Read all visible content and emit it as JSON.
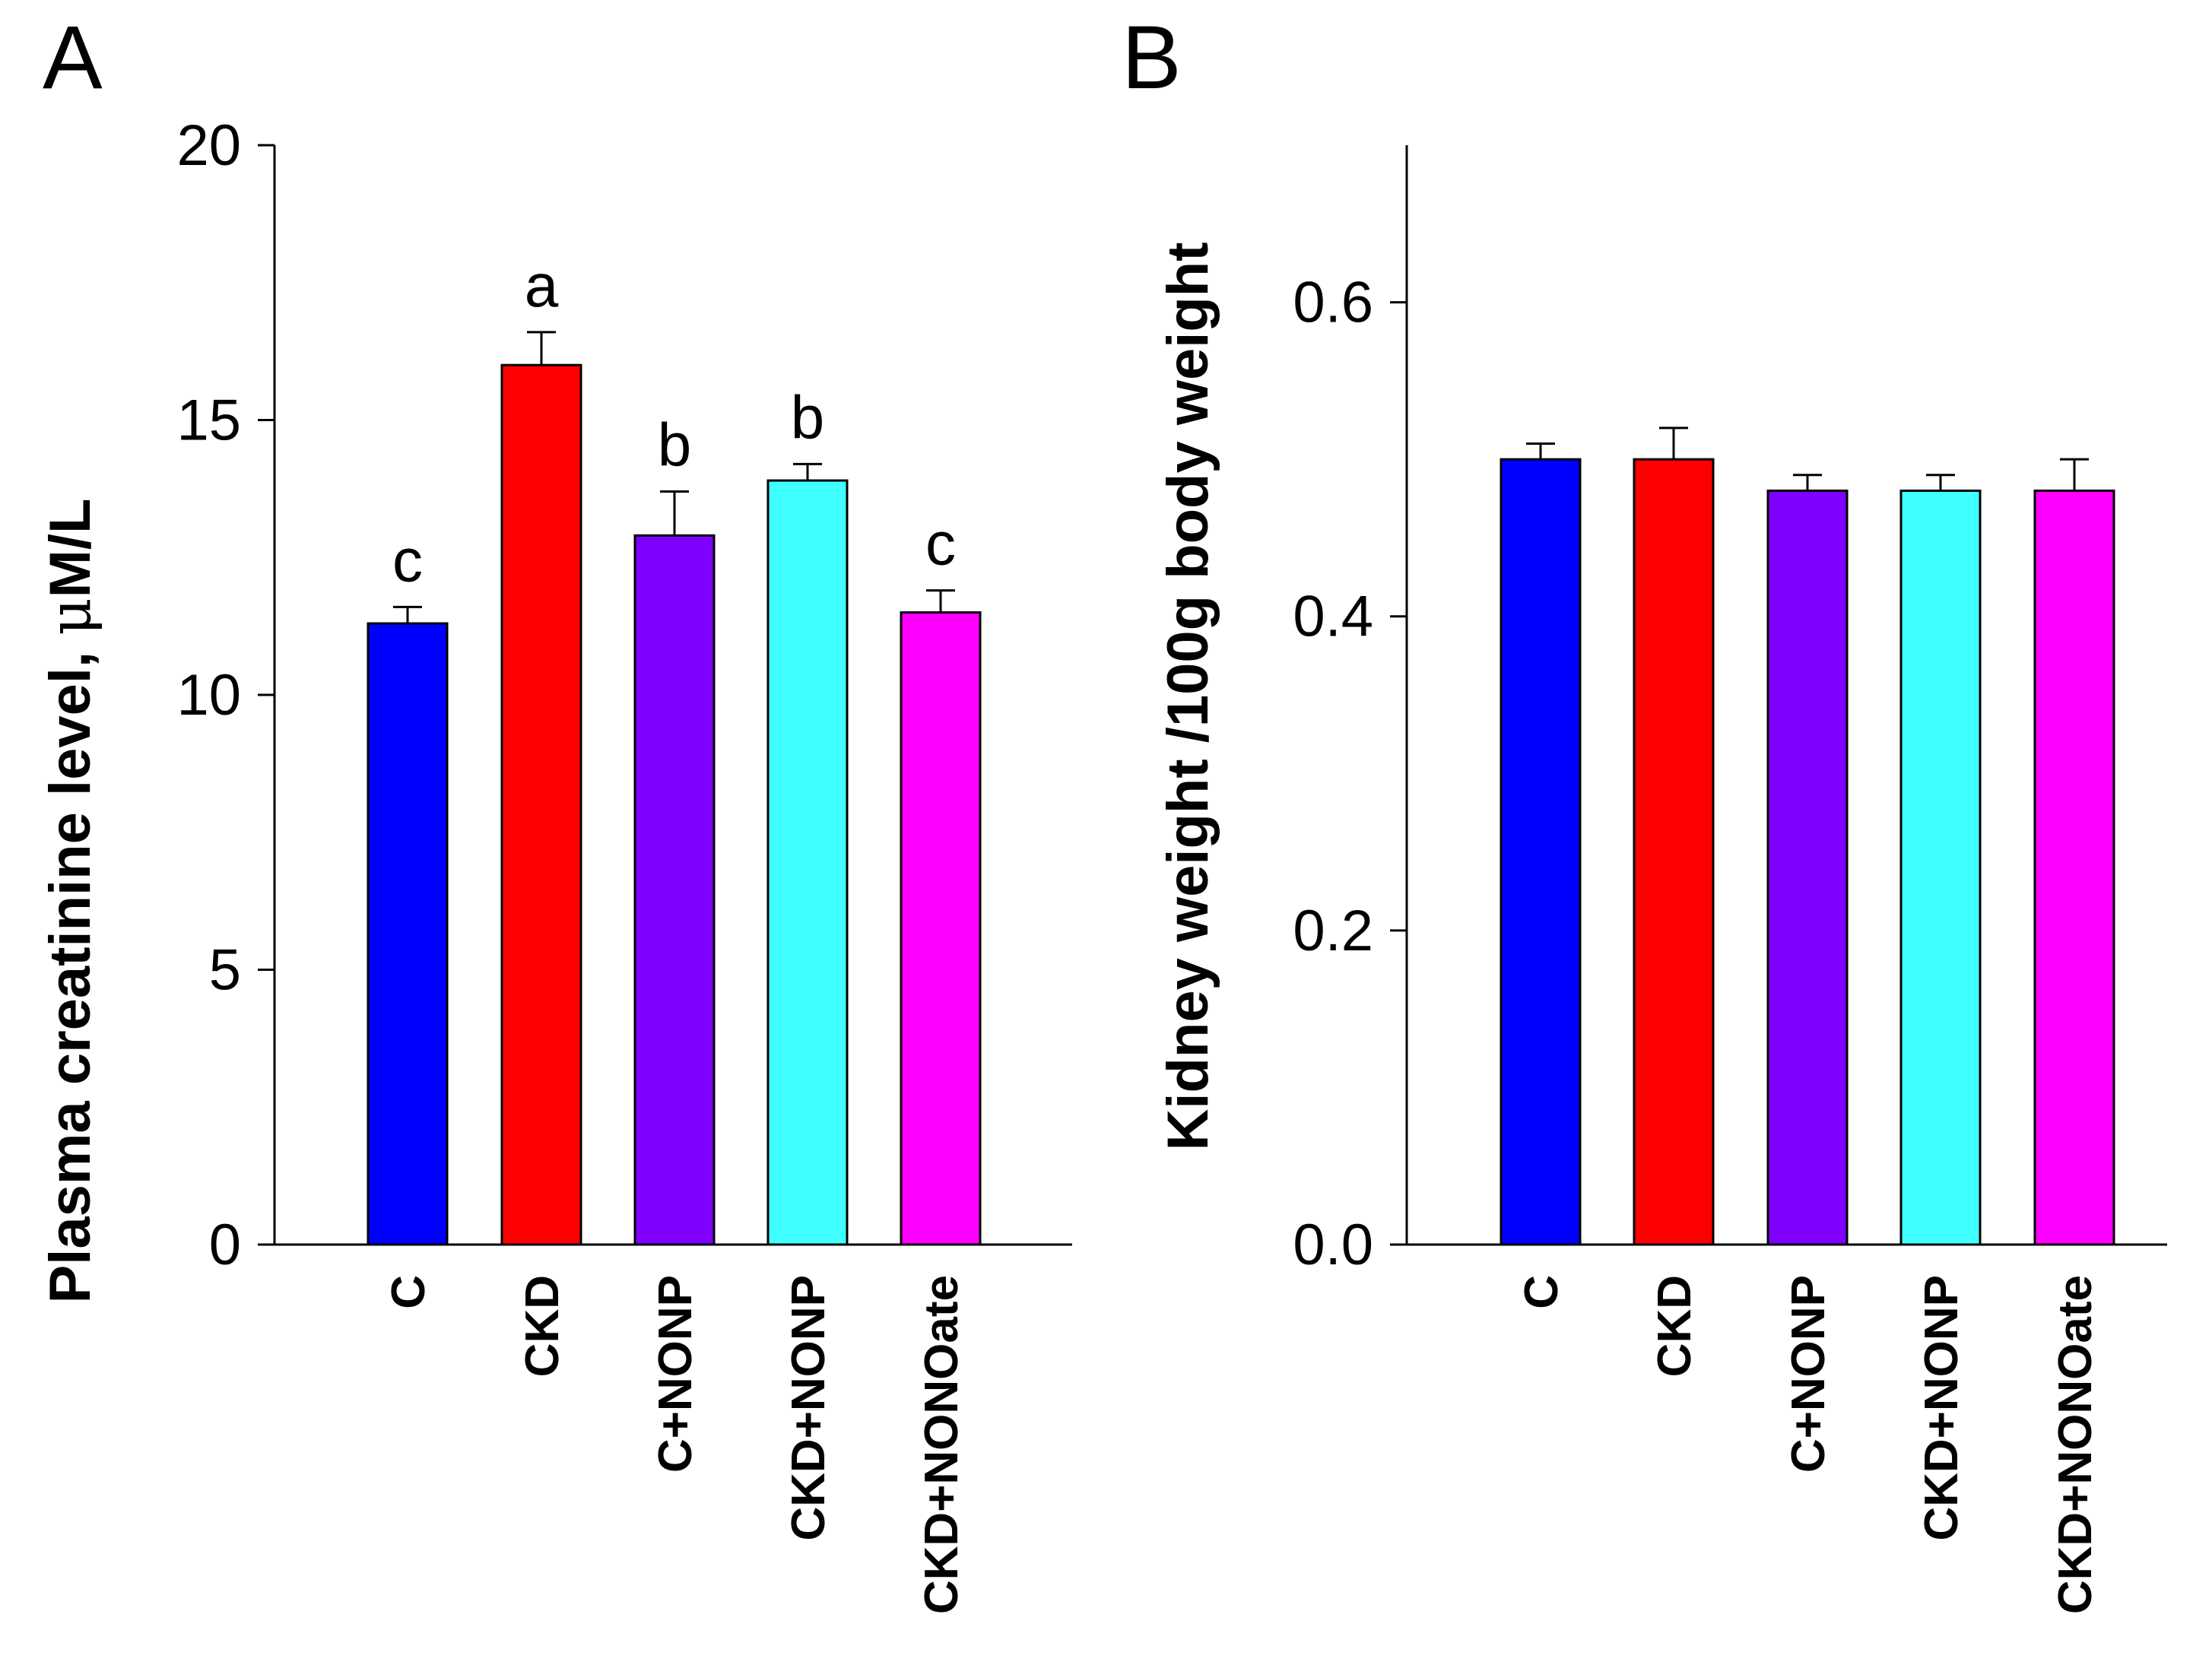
{
  "chart_data": [
    {
      "type": "bar",
      "panel_label": "A",
      "categories": [
        "C",
        "CKD",
        "C+NONP",
        "CKD+NONP",
        "CKD+NONOate"
      ],
      "values": [
        11.3,
        16.0,
        12.9,
        13.9,
        11.5
      ],
      "errors": [
        0.3,
        0.6,
        0.8,
        0.3,
        0.4
      ],
      "significance_labels": [
        "c",
        "a",
        "b",
        "b",
        "c"
      ],
      "colors": [
        "#0000ff",
        "#ff0000",
        "#8000ff",
        "#40ffff",
        "#ff00ff"
      ],
      "ylabel_prefix": "Plasma creatinine level, ",
      "ylabel_mu": "μ",
      "ylabel_suffix": "M/L",
      "ylim": [
        0,
        20
      ],
      "yticks": [
        "0",
        "5",
        "10",
        "15",
        "20"
      ],
      "ytick_values": [
        0,
        5,
        10,
        15,
        20
      ],
      "grid": false
    },
    {
      "type": "bar",
      "panel_label": "B",
      "categories": [
        "C",
        "CKD",
        "C+NONP",
        "CKD+NONP",
        "CKD+NONOate"
      ],
      "values": [
        0.5,
        0.5,
        0.48,
        0.48,
        0.48
      ],
      "errors": [
        0.01,
        0.02,
        0.01,
        0.01,
        0.02
      ],
      "colors": [
        "#0000ff",
        "#ff0000",
        "#8000ff",
        "#40ffff",
        "#ff00ff"
      ],
      "ylabel": "Kidney weight /100g body weight",
      "ylim": [
        0,
        0.7
      ],
      "yticks": [
        "0.0",
        "0.2",
        "0.4",
        "0.6"
      ],
      "ytick_values": [
        0,
        0.2,
        0.4,
        0.6
      ],
      "grid": false
    }
  ]
}
